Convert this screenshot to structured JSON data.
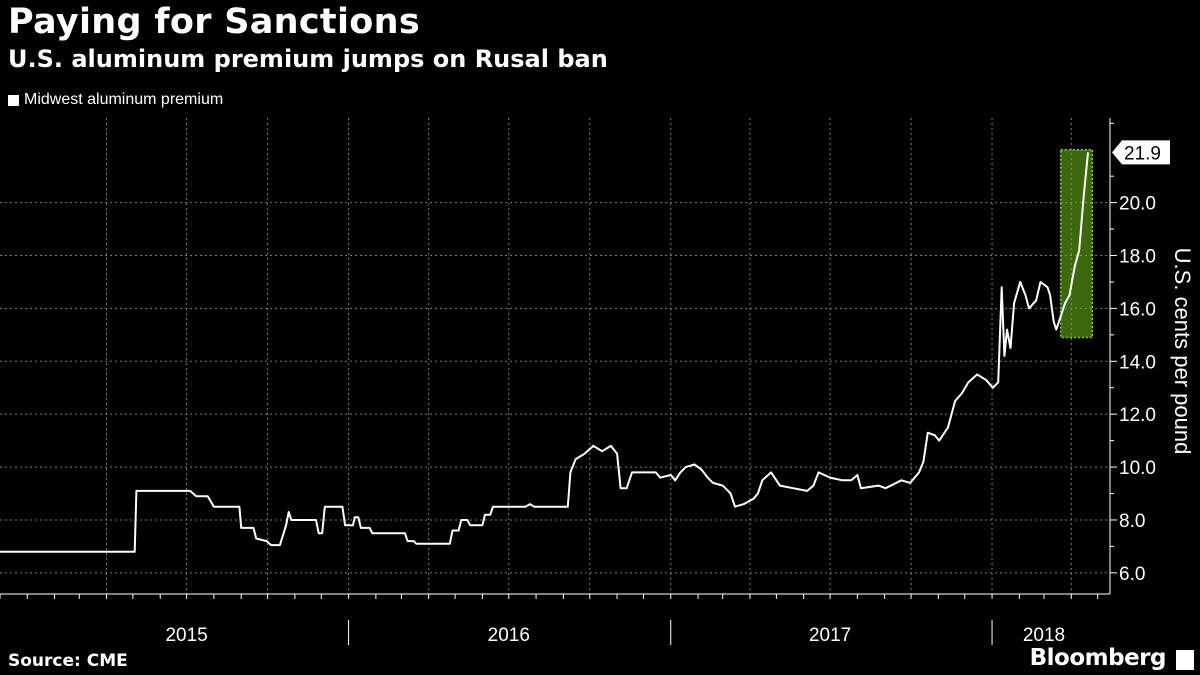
{
  "title": "Paying for Sanctions",
  "subtitle": "U.S. aluminum premium jumps on Rusal ban",
  "source": "Source: CME",
  "brand": "Bloomberg",
  "colors": {
    "background": "#000000",
    "line": "#ffffff",
    "highlight": "#6fbf1a"
  },
  "chart_data": {
    "type": "line",
    "title": "Paying for Sanctions",
    "subtitle": "U.S. aluminum premium jumps on Rusal ban",
    "ylabel": "U.S. cents per pound",
    "ylim": [
      5.2,
      23.2
    ],
    "yticks": [
      "6.0",
      "8.0",
      "10.0",
      "12.0",
      "14.0",
      "16.0",
      "18.0",
      "20.0"
    ],
    "xticks": [
      "2015",
      "2016",
      "2017",
      "2018"
    ],
    "grid": true,
    "legend_position": "top-left",
    "last_value_label": "21.9",
    "highlight_range": {
      "x_start": "2018-03-20",
      "x_end": "2018-04-25",
      "y_start": 14.9,
      "y_end": 22.0
    },
    "series": [
      {
        "name": "Midwest aluminum premium",
        "points": [
          [
            "2014-12-01",
            6.8
          ],
          [
            "2015-05-03",
            6.8
          ],
          [
            "2015-05-05",
            9.1
          ],
          [
            "2015-07-05",
            9.1
          ],
          [
            "2015-07-12",
            8.9
          ],
          [
            "2015-07-25",
            8.9
          ],
          [
            "2015-08-01",
            8.5
          ],
          [
            "2015-08-30",
            8.5
          ],
          [
            "2015-09-01",
            7.7
          ],
          [
            "2015-09-15",
            7.7
          ],
          [
            "2015-09-18",
            7.3
          ],
          [
            "2015-09-30",
            7.2
          ],
          [
            "2015-10-05",
            7.05
          ],
          [
            "2015-10-15",
            7.05
          ],
          [
            "2015-10-22",
            7.8
          ],
          [
            "2015-10-25",
            8.3
          ],
          [
            "2015-10-28",
            8.0
          ],
          [
            "2015-11-25",
            8.0
          ],
          [
            "2015-11-28",
            7.5
          ],
          [
            "2015-12-02",
            7.5
          ],
          [
            "2015-12-05",
            8.5
          ],
          [
            "2015-12-25",
            8.5
          ],
          [
            "2015-12-28",
            7.8
          ],
          [
            "2016-01-06",
            7.8
          ],
          [
            "2016-01-08",
            8.1
          ],
          [
            "2016-01-12",
            8.1
          ],
          [
            "2016-01-15",
            7.7
          ],
          [
            "2016-01-25",
            7.7
          ],
          [
            "2016-01-28",
            7.5
          ],
          [
            "2016-03-05",
            7.5
          ],
          [
            "2016-03-08",
            7.2
          ],
          [
            "2016-03-15",
            7.2
          ],
          [
            "2016-03-18",
            7.1
          ],
          [
            "2016-04-25",
            7.1
          ],
          [
            "2016-04-28",
            7.6
          ],
          [
            "2016-05-05",
            7.6
          ],
          [
            "2016-05-08",
            8.0
          ],
          [
            "2016-05-15",
            8.0
          ],
          [
            "2016-05-18",
            7.8
          ],
          [
            "2016-06-01",
            7.8
          ],
          [
            "2016-06-04",
            8.2
          ],
          [
            "2016-06-10",
            8.2
          ],
          [
            "2016-06-13",
            8.5
          ],
          [
            "2016-07-20",
            8.5
          ],
          [
            "2016-07-25",
            8.6
          ],
          [
            "2016-07-30",
            8.5
          ],
          [
            "2016-09-06",
            8.5
          ],
          [
            "2016-09-09",
            9.8
          ],
          [
            "2016-09-15",
            10.3
          ],
          [
            "2016-09-25",
            10.5
          ],
          [
            "2016-10-05",
            10.8
          ],
          [
            "2016-10-15",
            10.6
          ],
          [
            "2016-10-25",
            10.8
          ],
          [
            "2016-11-01",
            10.5
          ],
          [
            "2016-11-05",
            9.2
          ],
          [
            "2016-11-12",
            9.2
          ],
          [
            "2016-11-18",
            9.8
          ],
          [
            "2016-12-15",
            9.8
          ],
          [
            "2016-12-20",
            9.6
          ],
          [
            "2017-01-01",
            9.7
          ],
          [
            "2017-01-06",
            9.5
          ],
          [
            "2017-01-12",
            9.8
          ],
          [
            "2017-01-18",
            10.0
          ],
          [
            "2017-01-28",
            10.1
          ],
          [
            "2017-02-05",
            9.9
          ],
          [
            "2017-02-12",
            9.6
          ],
          [
            "2017-02-18",
            9.4
          ],
          [
            "2017-03-01",
            9.3
          ],
          [
            "2017-03-10",
            9.0
          ],
          [
            "2017-03-15",
            8.5
          ],
          [
            "2017-03-25",
            8.6
          ],
          [
            "2017-04-05",
            8.8
          ],
          [
            "2017-04-10",
            9.0
          ],
          [
            "2017-04-15",
            9.5
          ],
          [
            "2017-04-25",
            9.8
          ],
          [
            "2017-05-05",
            9.3
          ],
          [
            "2017-05-20",
            9.2
          ],
          [
            "2017-06-05",
            9.1
          ],
          [
            "2017-06-12",
            9.3
          ],
          [
            "2017-06-18",
            9.8
          ],
          [
            "2017-07-01",
            9.6
          ],
          [
            "2017-07-15",
            9.5
          ],
          [
            "2017-07-25",
            9.5
          ],
          [
            "2017-08-01",
            9.7
          ],
          [
            "2017-08-05",
            9.2
          ],
          [
            "2017-08-25",
            9.3
          ],
          [
            "2017-09-02",
            9.2
          ],
          [
            "2017-09-20",
            9.5
          ],
          [
            "2017-09-30",
            9.4
          ],
          [
            "2017-10-10",
            9.8
          ],
          [
            "2017-10-15",
            10.2
          ],
          [
            "2017-10-20",
            11.3
          ],
          [
            "2017-10-28",
            11.2
          ],
          [
            "2017-11-02",
            11.0
          ],
          [
            "2017-11-12",
            11.5
          ],
          [
            "2017-11-20",
            12.5
          ],
          [
            "2017-11-28",
            12.8
          ],
          [
            "2017-12-05",
            13.2
          ],
          [
            "2017-12-15",
            13.5
          ],
          [
            "2017-12-25",
            13.3
          ],
          [
            "2018-01-02",
            13.0
          ],
          [
            "2018-01-08",
            13.2
          ],
          [
            "2018-01-12",
            16.8
          ],
          [
            "2018-01-15",
            14.2
          ],
          [
            "2018-01-18",
            15.2
          ],
          [
            "2018-01-22",
            14.5
          ],
          [
            "2018-01-26",
            16.2
          ],
          [
            "2018-02-02",
            17.0
          ],
          [
            "2018-02-08",
            16.5
          ],
          [
            "2018-02-12",
            16.0
          ],
          [
            "2018-02-20",
            16.3
          ],
          [
            "2018-02-25",
            17.0
          ],
          [
            "2018-03-05",
            16.8
          ],
          [
            "2018-03-08",
            16.5
          ],
          [
            "2018-03-12",
            15.5
          ],
          [
            "2018-03-15",
            15.2
          ],
          [
            "2018-03-20",
            15.7
          ],
          [
            "2018-03-25",
            16.2
          ],
          [
            "2018-03-30",
            16.5
          ],
          [
            "2018-04-05",
            17.6
          ],
          [
            "2018-04-10",
            18.2
          ],
          [
            "2018-04-15",
            20.2
          ],
          [
            "2018-04-20",
            21.9
          ]
        ]
      }
    ]
  }
}
